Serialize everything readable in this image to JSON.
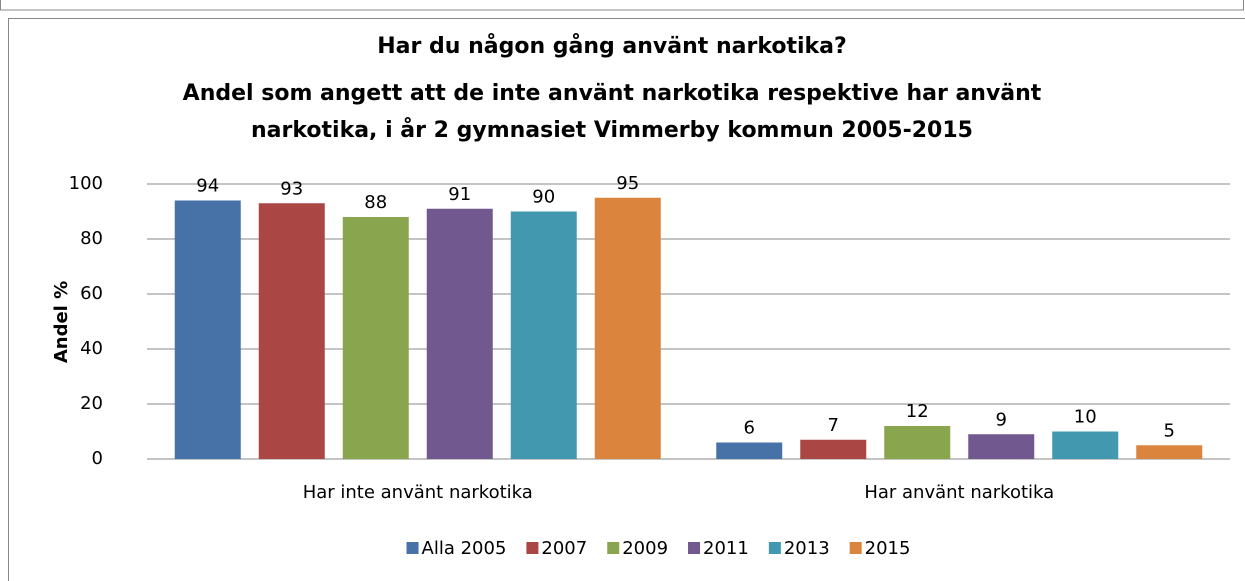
{
  "chart_data": {
    "type": "bar",
    "title": [
      "Har du någon gång använt narkotika?",
      "Andel som angett att de inte använt narkotika respektive har använt",
      "narkotika, i år 2 gymnasiet Vimmerby kommun 2005-2015"
    ],
    "y_label": "Andel %",
    "categories": [
      "Har inte använt narkotika",
      "Har använt narkotika"
    ],
    "series": [
      {
        "name": "Alla 2005",
        "color": "#4672a8",
        "values": [
          94,
          6
        ]
      },
      {
        "name": "2007",
        "color": "#aa4643",
        "values": [
          93,
          7
        ]
      },
      {
        "name": "2009",
        "color": "#89a54e",
        "values": [
          88,
          12
        ]
      },
      {
        "name": "2011",
        "color": "#71588f",
        "values": [
          91,
          9
        ]
      },
      {
        "name": "2013",
        "color": "#4198af",
        "values": [
          90,
          10
        ]
      },
      {
        "name": "2015",
        "color": "#db843d",
        "values": [
          95,
          5
        ]
      }
    ],
    "ylim": [
      0,
      100
    ],
    "yticks": [
      0,
      20,
      40,
      60,
      80,
      100
    ],
    "grid": true,
    "legend": "bottom"
  }
}
